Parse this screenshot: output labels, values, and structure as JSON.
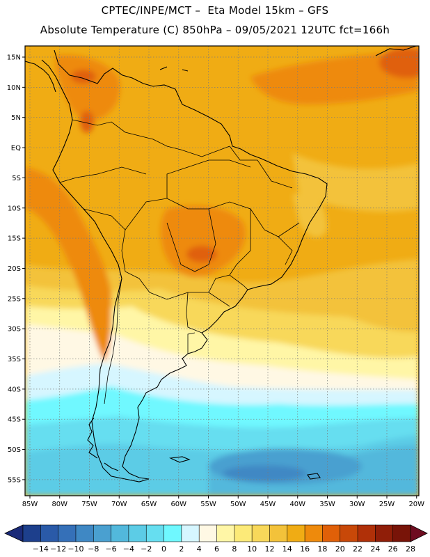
{
  "header": {
    "line1": "CPTEC/INPE/MCT –  Eta Model 15km – GFS",
    "line2": "Absolute Temperature (C) 850hPa – 09/05/2021 12UTC fct=166h"
  },
  "axes": {
    "lat_labels": [
      "15N",
      "10N",
      "5N",
      "EQ",
      "5S",
      "10S",
      "15S",
      "20S",
      "25S",
      "30S",
      "35S",
      "40S",
      "45S",
      "50S",
      "55S"
    ],
    "lon_labels": [
      "85W",
      "80W",
      "75W",
      "70W",
      "65W",
      "60W",
      "55W",
      "50W",
      "45W",
      "40W",
      "35W",
      "30W",
      "25W",
      "20W"
    ]
  },
  "colorbar": {
    "labels": [
      "-14",
      "-12",
      "-10",
      "-8",
      "-6",
      "-4",
      "-2",
      "0",
      "2",
      "4",
      "6",
      "8",
      "10",
      "12",
      "14",
      "16",
      "18",
      "20",
      "22",
      "24",
      "26",
      "28"
    ],
    "colors": [
      "#1d3f8c",
      "#2a5aa8",
      "#3570b8",
      "#3f88c4",
      "#4aa0d0",
      "#52b8dc",
      "#5ccce6",
      "#66def0",
      "#6ff8ff",
      "#d6f6ff",
      "#fff8e4",
      "#fff6a6",
      "#fcea78",
      "#f8d85a",
      "#f3c23a",
      "#f0ac14",
      "#ee8a0c",
      "#e06008",
      "#c84808",
      "#b03008",
      "#901e08",
      "#781408"
    ],
    "left_end_color": "#1a2a78",
    "right_end_color": "#6e0c20"
  },
  "map": {
    "background_color": "#f0ac14",
    "coastline_color": "#000000"
  }
}
